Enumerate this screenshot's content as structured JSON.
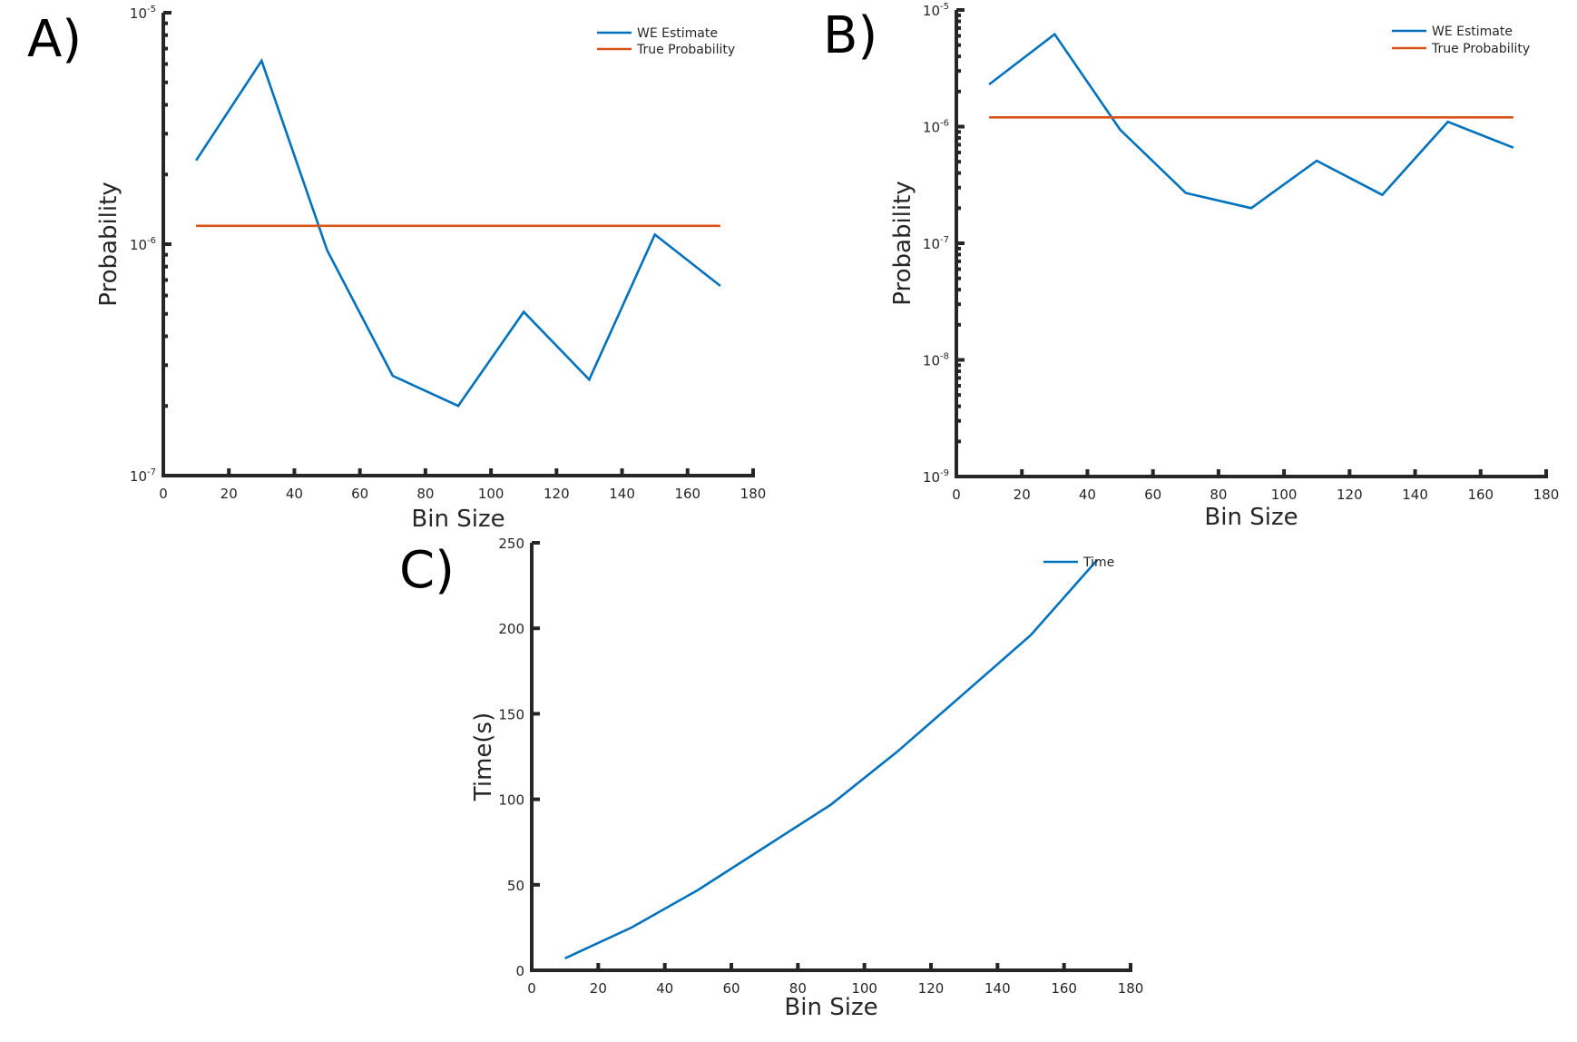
{
  "chart_data": [
    {
      "panel": "A)",
      "type": "line",
      "scale_y": "log",
      "xlabel": "Bin Size",
      "ylabel": "Probability",
      "xlim": [
        0,
        180
      ],
      "ylim": [
        1e-07,
        1e-05
      ],
      "x_ticks": [
        0,
        20,
        40,
        60,
        80,
        100,
        120,
        140,
        160,
        180
      ],
      "y_ticks": [
        1e-07,
        1e-06,
        1e-05
      ],
      "y_tick_labels": [
        {
          "base": "10",
          "exp": "-7"
        },
        {
          "base": "10",
          "exp": "-6"
        },
        {
          "base": "10",
          "exp": "-5"
        }
      ],
      "legend_position": "top-right",
      "series": [
        {
          "name": "WE Estimate",
          "color": "#0072BD",
          "x": [
            10,
            30,
            50,
            70,
            90,
            110,
            130,
            150,
            170
          ],
          "y": [
            2.3e-06,
            6.2e-06,
            9.4e-07,
            2.7e-07,
            2e-07,
            5.1e-07,
            2.6e-07,
            1.1e-06,
            6.6e-07
          ]
        },
        {
          "name": "True Probability",
          "color": "#D95319",
          "x": [
            10,
            170
          ],
          "y": [
            1.2e-06,
            1.2e-06
          ]
        }
      ]
    },
    {
      "panel": "B)",
      "type": "line",
      "scale_y": "log",
      "xlabel": "Bin Size",
      "ylabel": "Probability",
      "xlim": [
        0,
        180
      ],
      "ylim": [
        1e-09,
        1e-05
      ],
      "x_ticks": [
        0,
        20,
        40,
        60,
        80,
        100,
        120,
        140,
        160,
        180
      ],
      "y_ticks": [
        1e-09,
        1e-08,
        1e-07,
        1e-06,
        1e-05
      ],
      "y_tick_labels": [
        {
          "base": "10",
          "exp": "-9"
        },
        {
          "base": "10",
          "exp": "-8"
        },
        {
          "base": "10",
          "exp": "-7"
        },
        {
          "base": "10",
          "exp": "-6"
        },
        {
          "base": "10",
          "exp": "-5"
        }
      ],
      "legend_position": "top-right",
      "series": [
        {
          "name": "WE Estimate",
          "color": "#0072BD",
          "x": [
            10,
            30,
            50,
            70,
            90,
            110,
            130,
            150,
            170
          ],
          "y": [
            2.3e-06,
            6.2e-06,
            9.4e-07,
            2.7e-07,
            2e-07,
            5.1e-07,
            2.6e-07,
            1.1e-06,
            6.6e-07
          ]
        },
        {
          "name": "True Probability",
          "color": "#D95319",
          "x": [
            10,
            170
          ],
          "y": [
            1.2e-06,
            1.2e-06
          ]
        }
      ]
    },
    {
      "panel": "C)",
      "type": "line",
      "scale_y": "linear",
      "xlabel": "Bin Size",
      "ylabel": "Time(s)",
      "xlim": [
        0,
        180
      ],
      "ylim": [
        0,
        250
      ],
      "x_ticks": [
        0,
        20,
        40,
        60,
        80,
        100,
        120,
        140,
        160,
        180
      ],
      "y_ticks": [
        0,
        50,
        100,
        150,
        200,
        250
      ],
      "legend_position": "top-right",
      "series": [
        {
          "name": "Time",
          "color": "#0072BD",
          "x": [
            10,
            30,
            50,
            70,
            90,
            110,
            130,
            150,
            170
          ],
          "y": [
            7,
            25,
            47,
            72,
            97,
            128,
            162,
            196,
            240
          ]
        }
      ]
    }
  ]
}
